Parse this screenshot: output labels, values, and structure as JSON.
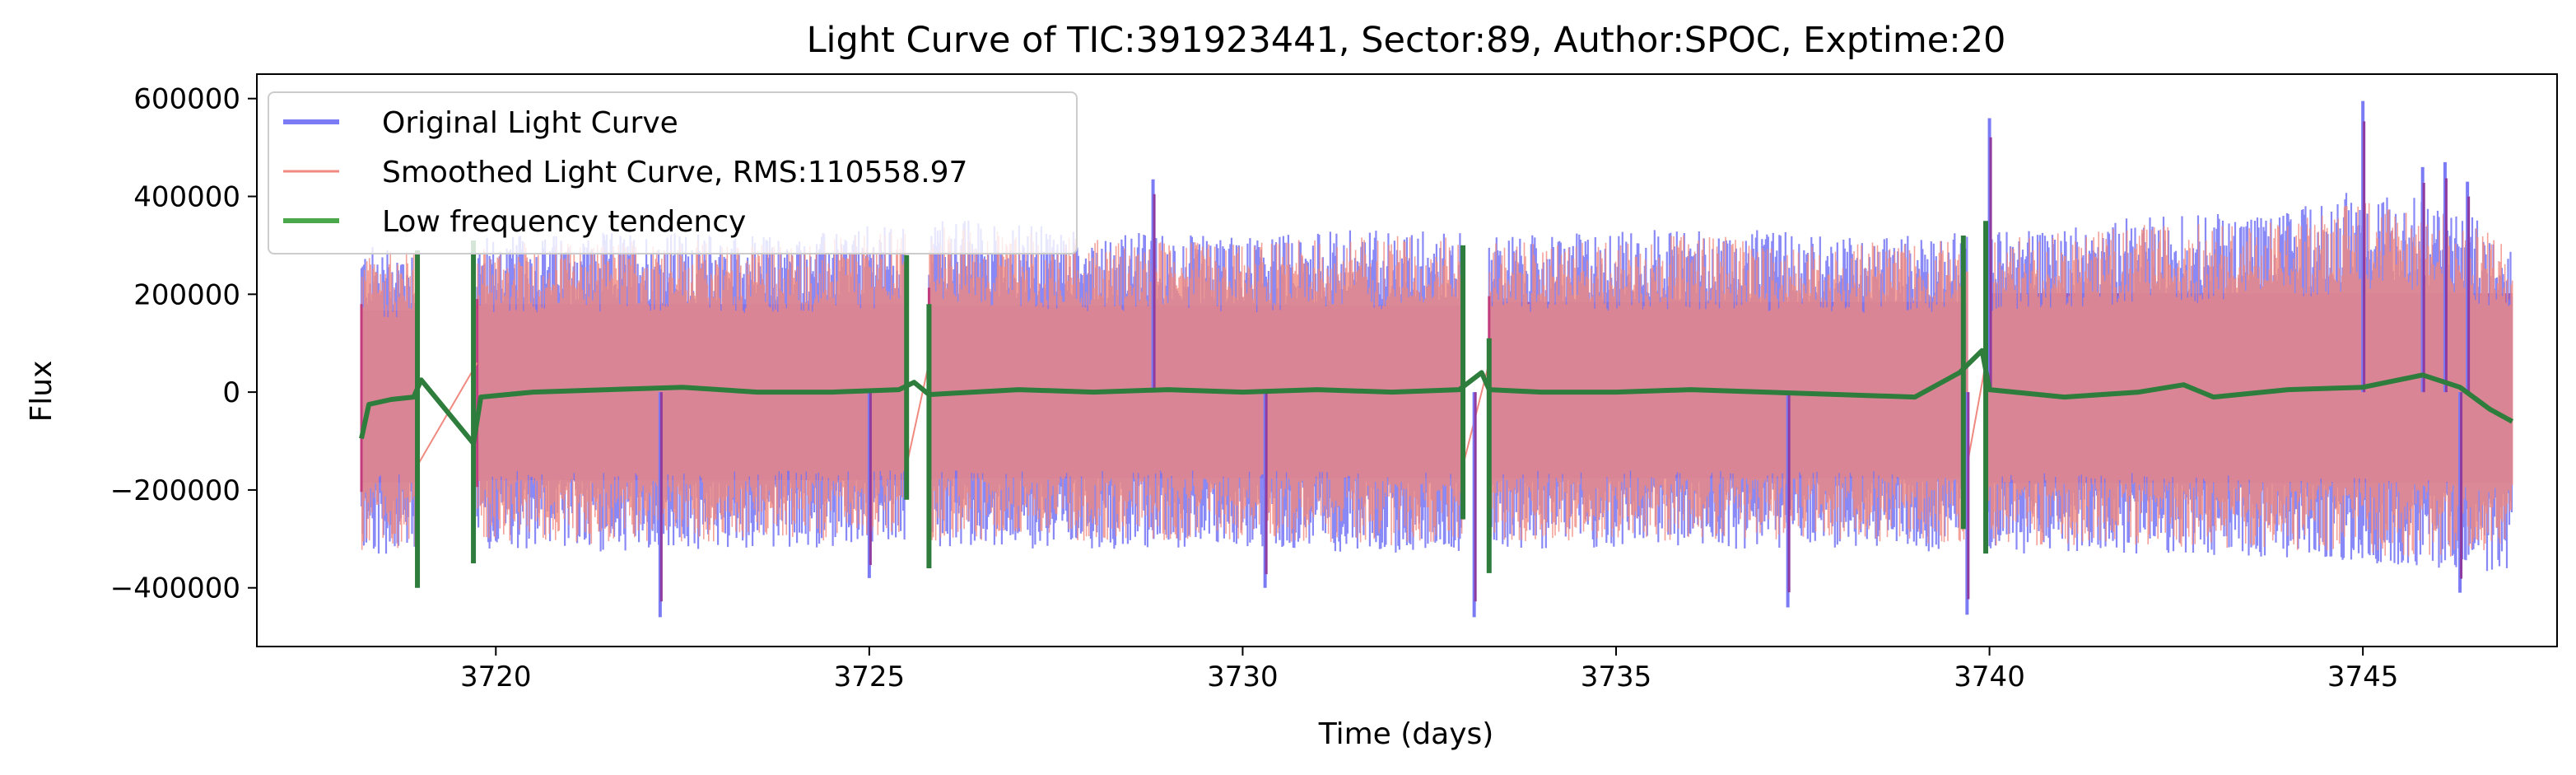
{
  "chart_data": {
    "type": "line",
    "title": "Light Curve of TIC:391923441, Sector:89, Author:SPOC, Exptime:20",
    "xlabel": "Time (days)",
    "ylabel": "Flux",
    "xlim": [
      3716.8,
      3747.6
    ],
    "ylim": [
      -520000,
      650000
    ],
    "xticks": [
      3720,
      3725,
      3730,
      3735,
      3740,
      3745
    ],
    "xtick_labels": [
      "3720",
      "3725",
      "3730",
      "3735",
      "3740",
      "3745"
    ],
    "yticks": [
      -400000,
      -200000,
      0,
      200000,
      400000,
      600000
    ],
    "ytick_labels": [
      "−400000",
      "−200000",
      "0",
      "200000",
      "400000",
      "600000"
    ],
    "grid": false,
    "legend_position": "upper-left",
    "segments": [
      [
        3718.2,
        3718.95
      ],
      [
        3719.75,
        3725.5
      ],
      [
        3725.8,
        3732.95
      ],
      [
        3733.3,
        3739.7
      ],
      [
        3739.95,
        3747.0
      ]
    ],
    "series": [
      {
        "name": "Original Light Curve",
        "color": "#7b7bf5",
        "style": "oscillating band",
        "envelope_upper": [
          [
            3718.3,
            300000
          ],
          [
            3720,
            320000
          ],
          [
            3722,
            330000
          ],
          [
            3724,
            320000
          ],
          [
            3726,
            360000
          ],
          [
            3728,
            330000
          ],
          [
            3730,
            320000
          ],
          [
            3732,
            340000
          ],
          [
            3734,
            320000
          ],
          [
            3736,
            340000
          ],
          [
            3738,
            320000
          ],
          [
            3740,
            330000
          ],
          [
            3742,
            360000
          ],
          [
            3744,
            370000
          ],
          [
            3745,
            420000
          ],
          [
            3746,
            390000
          ],
          [
            3746.9,
            330000
          ]
        ],
        "envelope_lower": [
          [
            3718.3,
            -340000
          ],
          [
            3720,
            -320000
          ],
          [
            3722,
            -330000
          ],
          [
            3724,
            -320000
          ],
          [
            3726,
            -320000
          ],
          [
            3728,
            -320000
          ],
          [
            3730,
            -320000
          ],
          [
            3732,
            -330000
          ],
          [
            3734,
            -320000
          ],
          [
            3736,
            -320000
          ],
          [
            3738,
            -320000
          ],
          [
            3740,
            -330000
          ],
          [
            3742,
            -330000
          ],
          [
            3744,
            -340000
          ],
          [
            3746,
            -360000
          ],
          [
            3746.9,
            -370000
          ]
        ],
        "spikes": [
          [
            3722.2,
            -460000
          ],
          [
            3728.8,
            435000
          ],
          [
            3733.1,
            -460000
          ],
          [
            3737.3,
            -440000
          ],
          [
            3739.7,
            -455000
          ],
          [
            3740.0,
            560000
          ],
          [
            3745.0,
            595000
          ],
          [
            3745.8,
            460000
          ],
          [
            3746.1,
            470000
          ],
          [
            3746.4,
            430000
          ],
          [
            3746.3,
            -410000
          ],
          [
            3725.0,
            -380000
          ],
          [
            3730.3,
            -400000
          ]
        ]
      },
      {
        "name": "Smoothed Light Curve, RMS:110558.97",
        "color": "#f08a80",
        "style": "oscillating band"
      },
      {
        "name": "Low frequency tendency",
        "color": "#2e7d3c",
        "points": [
          [
            3718.2,
            -95000
          ],
          [
            3718.3,
            -25000
          ],
          [
            3718.6,
            -15000
          ],
          [
            3718.9,
            -10000
          ],
          [
            3719.0,
            25000
          ],
          [
            3719.7,
            -105000
          ],
          [
            3719.8,
            -10000
          ],
          [
            3720.5,
            0
          ],
          [
            3721.5,
            5000
          ],
          [
            3722.5,
            10000
          ],
          [
            3723.5,
            0
          ],
          [
            3724.5,
            0
          ],
          [
            3725.4,
            5000
          ],
          [
            3725.6,
            20000
          ],
          [
            3725.8,
            -5000
          ],
          [
            3727,
            5000
          ],
          [
            3728,
            0
          ],
          [
            3729,
            5000
          ],
          [
            3730,
            0
          ],
          [
            3731,
            5000
          ],
          [
            3732,
            0
          ],
          [
            3732.9,
            5000
          ],
          [
            3733.2,
            40000
          ],
          [
            3733.3,
            5000
          ],
          [
            3734,
            0
          ],
          [
            3735,
            0
          ],
          [
            3736,
            5000
          ],
          [
            3737,
            0
          ],
          [
            3738,
            -5000
          ],
          [
            3739,
            -10000
          ],
          [
            3739.6,
            40000
          ],
          [
            3739.9,
            85000
          ],
          [
            3740.0,
            5000
          ],
          [
            3741,
            -10000
          ],
          [
            3742,
            0
          ],
          [
            3742.6,
            15000
          ],
          [
            3743,
            -10000
          ],
          [
            3744,
            5000
          ],
          [
            3745,
            10000
          ],
          [
            3745.8,
            35000
          ],
          [
            3746.3,
            10000
          ],
          [
            3746.7,
            -35000
          ],
          [
            3747.0,
            -60000
          ]
        ],
        "gap_spikes": [
          [
            3718.95,
            290000,
            -400000
          ],
          [
            3719.7,
            310000,
            -350000
          ],
          [
            3725.5,
            280000,
            -220000
          ],
          [
            3725.8,
            180000,
            -360000
          ],
          [
            3732.95,
            300000,
            -260000
          ],
          [
            3733.3,
            110000,
            -370000
          ],
          [
            3739.65,
            320000,
            -280000
          ],
          [
            3739.95,
            350000,
            -330000
          ]
        ]
      }
    ]
  },
  "colors": {
    "blue_band": "#7b7bf5",
    "red_band": "#f08a80",
    "fill_mix": "#c23b7c",
    "green": "#2e7d3c",
    "legend_green": "#4aa84a"
  }
}
